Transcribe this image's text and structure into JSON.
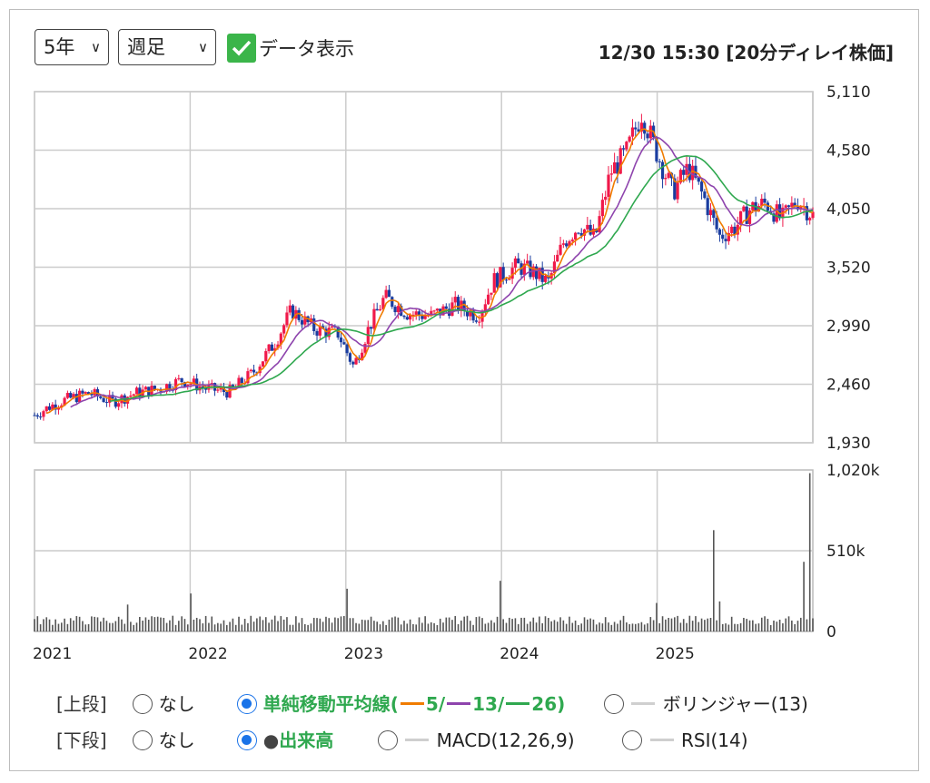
{
  "controls": {
    "period_label": "5年",
    "interval_label": "週足",
    "show_data_label": "データ表示",
    "timestamp": "12/30 15:30 [20分ディレイ株価]"
  },
  "chart_data": [
    {
      "type": "candlestick",
      "title": "",
      "x_ticks": [
        "2021",
        "2022",
        "2023",
        "2024",
        "2025"
      ],
      "y_ticks": [
        "5,110",
        "4,580",
        "4,050",
        "3,520",
        "2,990",
        "2,460",
        "1,930"
      ],
      "ylim": [
        1930,
        5110
      ],
      "moving_averages": [
        5,
        13,
        26
      ],
      "ma_colors": {
        "ma5": "#f07c00",
        "ma13": "#8e44ad",
        "ma26": "#2fa84f"
      },
      "candle_colors": {
        "up": "#f0194a",
        "down": "#1a3da0"
      },
      "weekly_close_approx": [
        {
          "t": 2021.0,
          "v": 2180
        },
        {
          "t": 2021.1,
          "v": 2260
        },
        {
          "t": 2021.2,
          "v": 2320
        },
        {
          "t": 2021.35,
          "v": 2380
        },
        {
          "t": 2021.5,
          "v": 2300
        },
        {
          "t": 2021.65,
          "v": 2380
        },
        {
          "t": 2021.8,
          "v": 2420
        },
        {
          "t": 2021.95,
          "v": 2500
        },
        {
          "t": 2022.1,
          "v": 2420
        },
        {
          "t": 2022.25,
          "v": 2390
        },
        {
          "t": 2022.4,
          "v": 2560
        },
        {
          "t": 2022.55,
          "v": 2850
        },
        {
          "t": 2022.65,
          "v": 3130
        },
        {
          "t": 2022.8,
          "v": 2960
        },
        {
          "t": 2022.95,
          "v": 2920
        },
        {
          "t": 2023.05,
          "v": 2620
        },
        {
          "t": 2023.15,
          "v": 2980
        },
        {
          "t": 2023.25,
          "v": 3250
        },
        {
          "t": 2023.4,
          "v": 3100
        },
        {
          "t": 2023.55,
          "v": 3080
        },
        {
          "t": 2023.7,
          "v": 3180
        },
        {
          "t": 2023.85,
          "v": 3080
        },
        {
          "t": 2023.95,
          "v": 3400
        },
        {
          "t": 2024.1,
          "v": 3530
        },
        {
          "t": 2024.2,
          "v": 3480
        },
        {
          "t": 2024.3,
          "v": 3380
        },
        {
          "t": 2024.4,
          "v": 3750
        },
        {
          "t": 2024.5,
          "v": 3900
        },
        {
          "t": 2024.6,
          "v": 3780
        },
        {
          "t": 2024.7,
          "v": 4380
        },
        {
          "t": 2024.8,
          "v": 4550
        },
        {
          "t": 2024.9,
          "v": 4920
        },
        {
          "t": 2025.0,
          "v": 4550
        },
        {
          "t": 2025.1,
          "v": 4200
        },
        {
          "t": 2025.2,
          "v": 4420
        },
        {
          "t": 2025.3,
          "v": 4150
        },
        {
          "t": 2025.4,
          "v": 3800
        },
        {
          "t": 2025.5,
          "v": 3880
        },
        {
          "t": 2025.6,
          "v": 4050
        },
        {
          "t": 2025.7,
          "v": 4100
        },
        {
          "t": 2025.8,
          "v": 3950
        },
        {
          "t": 2025.9,
          "v": 4130
        },
        {
          "t": 2026.0,
          "v": 3990
        }
      ]
    },
    {
      "type": "bar",
      "title": "",
      "y_ticks": [
        "1,020k",
        "510k",
        "0"
      ],
      "ylim": [
        0,
        1020
      ],
      "unit": "k",
      "notable_volume_spikes": [
        {
          "t": 2021.6,
          "v": 170
        },
        {
          "t": 2022.0,
          "v": 240
        },
        {
          "t": 2023.0,
          "v": 270
        },
        {
          "t": 2024.0,
          "v": 320
        },
        {
          "t": 2025.0,
          "v": 180
        },
        {
          "t": 2025.37,
          "v": 640
        },
        {
          "t": 2025.4,
          "v": 190
        },
        {
          "t": 2025.95,
          "v": 440
        },
        {
          "t": 2025.98,
          "v": 1000
        }
      ]
    }
  ],
  "legend": {
    "upper_label": "[上段]",
    "none_label_upper": "なし",
    "sma_prefix": "単純移動平均線(",
    "sma_5": "5/",
    "sma_13": "13/",
    "sma_26": "26)",
    "bollinger_label": "ボリンジャー(13)",
    "lower_label": "[下段]",
    "none_label_lower": "なし",
    "volume_label": "出来高",
    "macd_label": "MACD(12,26,9)",
    "rsi_label": "RSI(14)"
  }
}
